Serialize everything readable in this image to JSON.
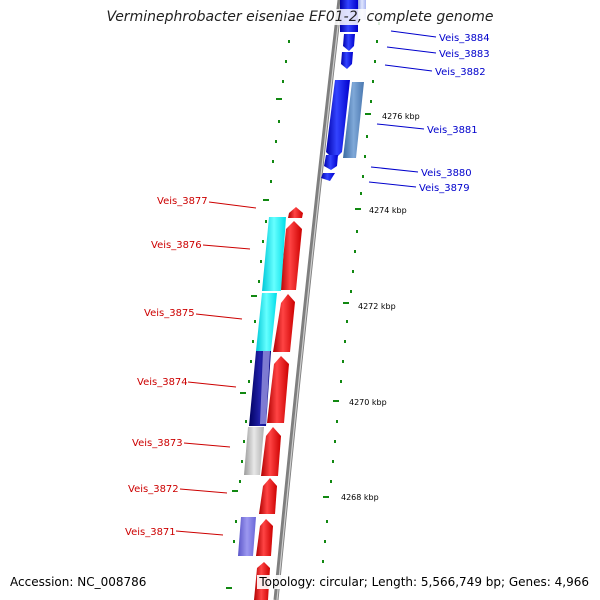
{
  "header": {
    "title": "Verminephrobacter eiseniae EF01-2, complete genome"
  },
  "footer": {
    "accession": "Accession: NC_008786",
    "topology": "Topology: circular; Length: 5,566,749 bp; Genes: 4,966"
  },
  "colors": {
    "forward_label": "#cc0000",
    "reverse_label": "#0000cc",
    "backbone": "#888888",
    "tick": "#118811"
  },
  "genes": {
    "forward": [
      {
        "name": "Veis_3877",
        "color": "#ff0000"
      },
      {
        "name": "Veis_3876",
        "color": "#ff0000"
      },
      {
        "name": "Veis_3875",
        "color": "#ff0000"
      },
      {
        "name": "Veis_3874",
        "color": "#ff0000"
      },
      {
        "name": "Veis_3873",
        "color": "#ff0000"
      },
      {
        "name": "Veis_3872",
        "color": "#ff0000"
      },
      {
        "name": "Veis_3871",
        "color": "#ff0000"
      }
    ],
    "reverse": [
      {
        "name": "Veis_3884",
        "color": "#0000ff"
      },
      {
        "name": "Veis_3883",
        "color": "#0000ff"
      },
      {
        "name": "Veis_3882",
        "color": "#0000ff"
      },
      {
        "name": "Veis_3881",
        "color": "#0000ff"
      },
      {
        "name": "Veis_3880",
        "color": "#0000ff"
      },
      {
        "name": "Veis_3879",
        "color": "#0000ff"
      }
    ]
  },
  "coordinate_labels": [
    "4276 kbp",
    "4274 kbp",
    "4272 kbp",
    "4270 kbp",
    "4268 kbp"
  ]
}
